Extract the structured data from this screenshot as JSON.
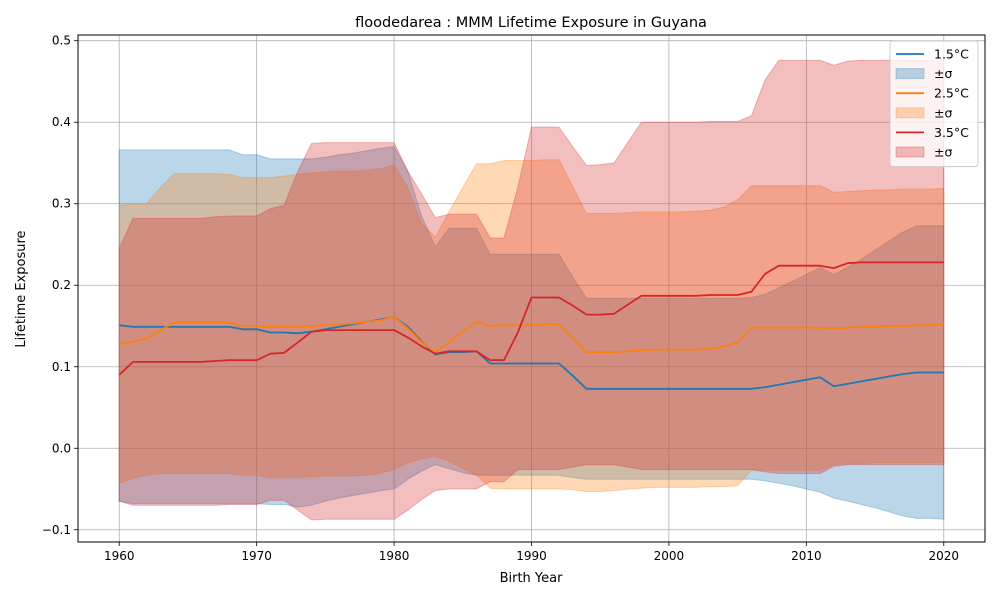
{
  "chart_data": {
    "type": "area",
    "title": "floodedarea : MMM Lifetime Exposure in Guyana",
    "xlabel": "Birth Year",
    "ylabel": "Lifetime Exposure",
    "xlim": [
      1957,
      2023
    ],
    "ylim": [
      -0.115,
      0.507
    ],
    "xticks": [
      1960,
      1970,
      1980,
      1990,
      2000,
      2010,
      2020
    ],
    "yticks": [
      -0.1,
      0.0,
      0.1,
      0.2,
      0.3,
      0.4,
      0.5
    ],
    "xtick_labels": [
      "1960",
      "1970",
      "1980",
      "1990",
      "2000",
      "2010",
      "2020"
    ],
    "ytick_labels": [
      "−0.1",
      "0.0",
      "0.1",
      "0.2",
      "0.3",
      "0.4",
      "0.5"
    ],
    "grid": true,
    "legend_position": "top-right",
    "series": [
      {
        "name": "1.5°C",
        "band_name": "±σ",
        "color": "#1f77b4",
        "band_color": "#1f77b4",
        "band_alpha": 0.3,
        "x": [
          1960,
          1961,
          1962,
          1963,
          1964,
          1965,
          1966,
          1967,
          1968,
          1969,
          1970,
          1971,
          1972,
          1973,
          1974,
          1975,
          1976,
          1977,
          1978,
          1979,
          1980,
          1981,
          1982,
          1983,
          1984,
          1985,
          1986,
          1987,
          1988,
          1989,
          1990,
          1991,
          1992,
          1993,
          1994,
          1995,
          1996,
          1997,
          1998,
          1999,
          2000,
          2001,
          2002,
          2003,
          2004,
          2005,
          2006,
          2007,
          2008,
          2009,
          2010,
          2011,
          2012,
          2013,
          2014,
          2015,
          2016,
          2017,
          2018,
          2019,
          2020
        ],
        "mean": [
          0.151,
          0.149,
          0.149,
          0.149,
          0.149,
          0.149,
          0.149,
          0.149,
          0.149,
          0.146,
          0.146,
          0.142,
          0.142,
          0.141,
          0.143,
          0.146,
          0.149,
          0.152,
          0.155,
          0.158,
          0.161,
          0.149,
          0.131,
          0.115,
          0.118,
          0.118,
          0.119,
          0.104,
          0.104,
          0.104,
          0.104,
          0.104,
          0.104,
          0.089,
          0.073,
          0.073,
          0.073,
          0.073,
          0.073,
          0.073,
          0.073,
          0.073,
          0.073,
          0.073,
          0.073,
          0.073,
          0.073,
          0.075,
          0.078,
          0.081,
          0.084,
          0.087,
          0.076,
          0.079,
          0.082,
          0.085,
          0.088,
          0.091,
          0.093,
          0.093,
          0.093
        ],
        "upper": [
          0.366,
          0.366,
          0.366,
          0.366,
          0.366,
          0.366,
          0.366,
          0.366,
          0.366,
          0.36,
          0.36,
          0.355,
          0.355,
          0.355,
          0.355,
          0.357,
          0.36,
          0.362,
          0.365,
          0.368,
          0.37,
          0.34,
          0.285,
          0.247,
          0.27,
          0.27,
          0.27,
          0.238,
          0.238,
          0.238,
          0.238,
          0.238,
          0.238,
          0.21,
          0.184,
          0.184,
          0.184,
          0.184,
          0.184,
          0.184,
          0.184,
          0.184,
          0.184,
          0.184,
          0.184,
          0.184,
          0.185,
          0.189,
          0.197,
          0.205,
          0.213,
          0.222,
          0.213,
          0.222,
          0.232,
          0.243,
          0.254,
          0.265,
          0.273,
          0.273,
          0.273
        ],
        "lower": [
          -0.065,
          -0.068,
          -0.068,
          -0.068,
          -0.068,
          -0.068,
          -0.068,
          -0.068,
          -0.068,
          -0.068,
          -0.068,
          -0.069,
          -0.069,
          -0.072,
          -0.07,
          -0.065,
          -0.061,
          -0.058,
          -0.055,
          -0.052,
          -0.05,
          -0.038,
          -0.028,
          -0.02,
          -0.025,
          -0.03,
          -0.033,
          -0.033,
          -0.033,
          -0.033,
          -0.033,
          -0.033,
          -0.033,
          -0.036,
          -0.038,
          -0.038,
          -0.038,
          -0.038,
          -0.038,
          -0.038,
          -0.038,
          -0.038,
          -0.038,
          -0.038,
          -0.038,
          -0.038,
          -0.038,
          -0.04,
          -0.043,
          -0.046,
          -0.05,
          -0.054,
          -0.061,
          -0.065,
          -0.069,
          -0.073,
          -0.078,
          -0.083,
          -0.086,
          -0.086,
          -0.087
        ]
      },
      {
        "name": "2.5°C",
        "band_name": "±σ",
        "color": "#ff7f0e",
        "band_color": "#ff7f0e",
        "band_alpha": 0.3,
        "x": [
          1960,
          1961,
          1962,
          1963,
          1964,
          1965,
          1966,
          1967,
          1968,
          1969,
          1970,
          1971,
          1972,
          1973,
          1974,
          1975,
          1976,
          1977,
          1978,
          1979,
          1980,
          1981,
          1982,
          1983,
          1984,
          1985,
          1986,
          1987,
          1988,
          1989,
          1990,
          1991,
          1992,
          1993,
          1994,
          1995,
          1996,
          1997,
          1998,
          1999,
          2000,
          2001,
          2002,
          2003,
          2004,
          2005,
          2006,
          2007,
          2008,
          2009,
          2010,
          2011,
          2012,
          2013,
          2014,
          2015,
          2016,
          2017,
          2018,
          2019,
          2020
        ],
        "mean": [
          0.128,
          0.131,
          0.135,
          0.145,
          0.154,
          0.154,
          0.154,
          0.154,
          0.154,
          0.15,
          0.15,
          0.149,
          0.149,
          0.149,
          0.15,
          0.151,
          0.152,
          0.153,
          0.155,
          0.157,
          0.161,
          0.147,
          0.13,
          0.118,
          0.13,
          0.143,
          0.155,
          0.15,
          0.151,
          0.151,
          0.151,
          0.152,
          0.152,
          0.135,
          0.118,
          0.118,
          0.118,
          0.119,
          0.12,
          0.121,
          0.121,
          0.121,
          0.121,
          0.122,
          0.125,
          0.13,
          0.148,
          0.148,
          0.148,
          0.148,
          0.148,
          0.148,
          0.147,
          0.148,
          0.149,
          0.149,
          0.15,
          0.15,
          0.151,
          0.151,
          0.152
        ],
        "upper": [
          0.298,
          0.3,
          0.3,
          0.32,
          0.337,
          0.337,
          0.337,
          0.337,
          0.336,
          0.332,
          0.332,
          0.332,
          0.334,
          0.336,
          0.338,
          0.339,
          0.34,
          0.34,
          0.341,
          0.343,
          0.348,
          0.32,
          0.276,
          0.259,
          0.29,
          0.32,
          0.349,
          0.349,
          0.353,
          0.353,
          0.353,
          0.354,
          0.354,
          0.321,
          0.288,
          0.288,
          0.288,
          0.289,
          0.29,
          0.29,
          0.29,
          0.29,
          0.291,
          0.292,
          0.296,
          0.305,
          0.322,
          0.322,
          0.322,
          0.322,
          0.322,
          0.322,
          0.314,
          0.315,
          0.316,
          0.317,
          0.317,
          0.318,
          0.318,
          0.318,
          0.319
        ],
        "lower": [
          -0.043,
          -0.037,
          -0.033,
          -0.031,
          -0.031,
          -0.031,
          -0.031,
          -0.031,
          -0.031,
          -0.033,
          -0.033,
          -0.036,
          -0.036,
          -0.036,
          -0.035,
          -0.034,
          -0.034,
          -0.034,
          -0.033,
          -0.031,
          -0.026,
          -0.018,
          -0.013,
          -0.01,
          -0.016,
          -0.025,
          -0.033,
          -0.049,
          -0.05,
          -0.05,
          -0.05,
          -0.05,
          -0.05,
          -0.051,
          -0.053,
          -0.053,
          -0.052,
          -0.05,
          -0.049,
          -0.048,
          -0.048,
          -0.048,
          -0.048,
          -0.047,
          -0.047,
          -0.046,
          -0.027,
          -0.027,
          -0.027,
          -0.027,
          -0.027,
          -0.027,
          -0.02,
          -0.019,
          -0.019,
          -0.018,
          -0.018,
          -0.018,
          -0.018,
          -0.018,
          -0.017
        ]
      },
      {
        "name": "3.5°C",
        "band_name": "±σ",
        "color": "#d62728",
        "band_color": "#d62728",
        "band_alpha": 0.3,
        "x": [
          1960,
          1961,
          1962,
          1963,
          1964,
          1965,
          1966,
          1967,
          1968,
          1969,
          1970,
          1971,
          1972,
          1973,
          1974,
          1975,
          1976,
          1977,
          1978,
          1979,
          1980,
          1981,
          1982,
          1983,
          1984,
          1985,
          1986,
          1987,
          1988,
          1989,
          1990,
          1991,
          1992,
          1993,
          1994,
          1995,
          1996,
          1997,
          1998,
          1999,
          2000,
          2001,
          2002,
          2003,
          2004,
          2005,
          2006,
          2007,
          2008,
          2009,
          2010,
          2011,
          2012,
          2013,
          2014,
          2015,
          2016,
          2017,
          2018,
          2019,
          2020
        ],
        "mean": [
          0.09,
          0.106,
          0.106,
          0.106,
          0.106,
          0.106,
          0.106,
          0.107,
          0.108,
          0.108,
          0.108,
          0.116,
          0.117,
          0.13,
          0.143,
          0.145,
          0.145,
          0.145,
          0.145,
          0.145,
          0.145,
          0.136,
          0.125,
          0.116,
          0.119,
          0.119,
          0.119,
          0.108,
          0.108,
          0.142,
          0.185,
          0.185,
          0.185,
          0.175,
          0.164,
          0.164,
          0.165,
          0.176,
          0.187,
          0.187,
          0.187,
          0.187,
          0.187,
          0.188,
          0.188,
          0.188,
          0.192,
          0.214,
          0.224,
          0.224,
          0.224,
          0.224,
          0.221,
          0.227,
          0.228,
          0.228,
          0.228,
          0.228,
          0.228,
          0.228,
          0.228
        ],
        "upper": [
          0.245,
          0.282,
          0.282,
          0.282,
          0.282,
          0.282,
          0.282,
          0.284,
          0.285,
          0.285,
          0.285,
          0.294,
          0.298,
          0.34,
          0.374,
          0.375,
          0.375,
          0.375,
          0.375,
          0.375,
          0.375,
          0.34,
          0.312,
          0.283,
          0.287,
          0.287,
          0.287,
          0.258,
          0.258,
          0.32,
          0.394,
          0.394,
          0.394,
          0.37,
          0.347,
          0.348,
          0.35,
          0.375,
          0.4,
          0.4,
          0.4,
          0.4,
          0.4,
          0.401,
          0.401,
          0.401,
          0.408,
          0.452,
          0.476,
          0.476,
          0.476,
          0.476,
          0.47,
          0.475,
          0.476,
          0.476,
          0.476,
          0.476,
          0.476,
          0.476,
          0.476
        ],
        "lower": [
          -0.065,
          -0.07,
          -0.07,
          -0.07,
          -0.07,
          -0.07,
          -0.07,
          -0.07,
          -0.069,
          -0.069,
          -0.069,
          -0.064,
          -0.064,
          -0.076,
          -0.088,
          -0.087,
          -0.087,
          -0.087,
          -0.087,
          -0.087,
          -0.087,
          -0.076,
          -0.063,
          -0.052,
          -0.05,
          -0.05,
          -0.05,
          -0.041,
          -0.041,
          -0.026,
          -0.026,
          -0.026,
          -0.026,
          -0.023,
          -0.02,
          -0.02,
          -0.02,
          -0.023,
          -0.026,
          -0.026,
          -0.026,
          -0.026,
          -0.026,
          -0.026,
          -0.026,
          -0.026,
          -0.026,
          -0.029,
          -0.031,
          -0.031,
          -0.031,
          -0.031,
          -0.022,
          -0.02,
          -0.02,
          -0.02,
          -0.02,
          -0.02,
          -0.02,
          -0.02,
          -0.02
        ]
      }
    ]
  }
}
